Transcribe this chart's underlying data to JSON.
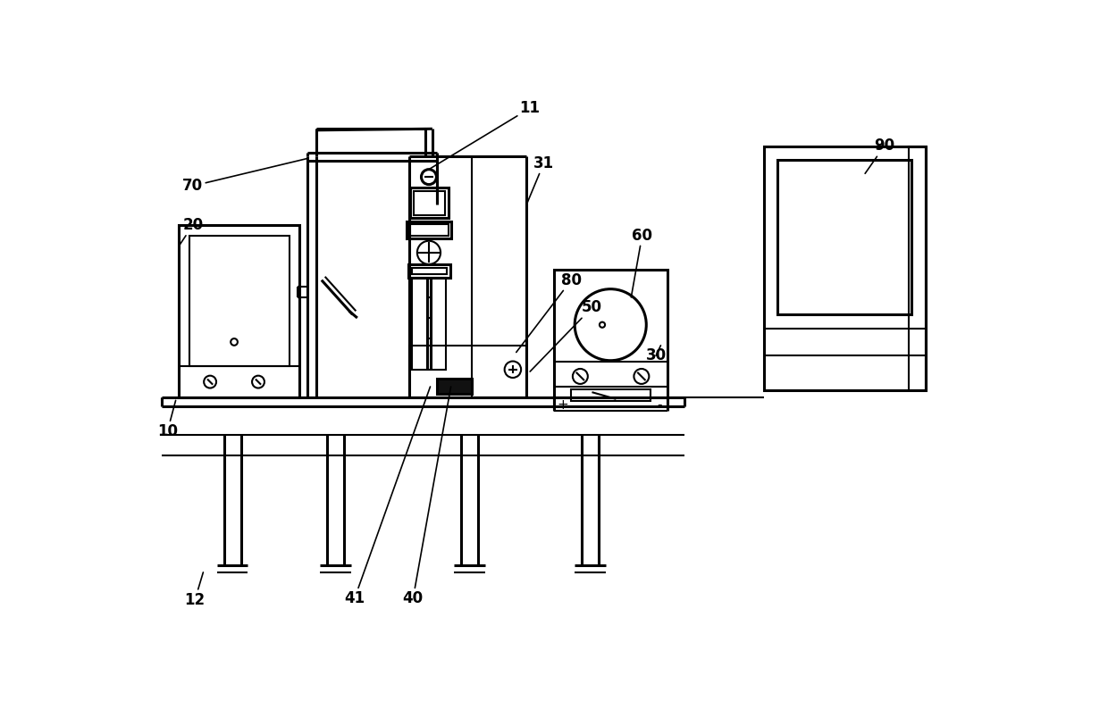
{
  "background": "#ffffff",
  "line_color": "#000000",
  "lw": 1.5,
  "lw2": 2.2,
  "figsize": [
    12.4,
    7.85
  ],
  "dpi": 100
}
